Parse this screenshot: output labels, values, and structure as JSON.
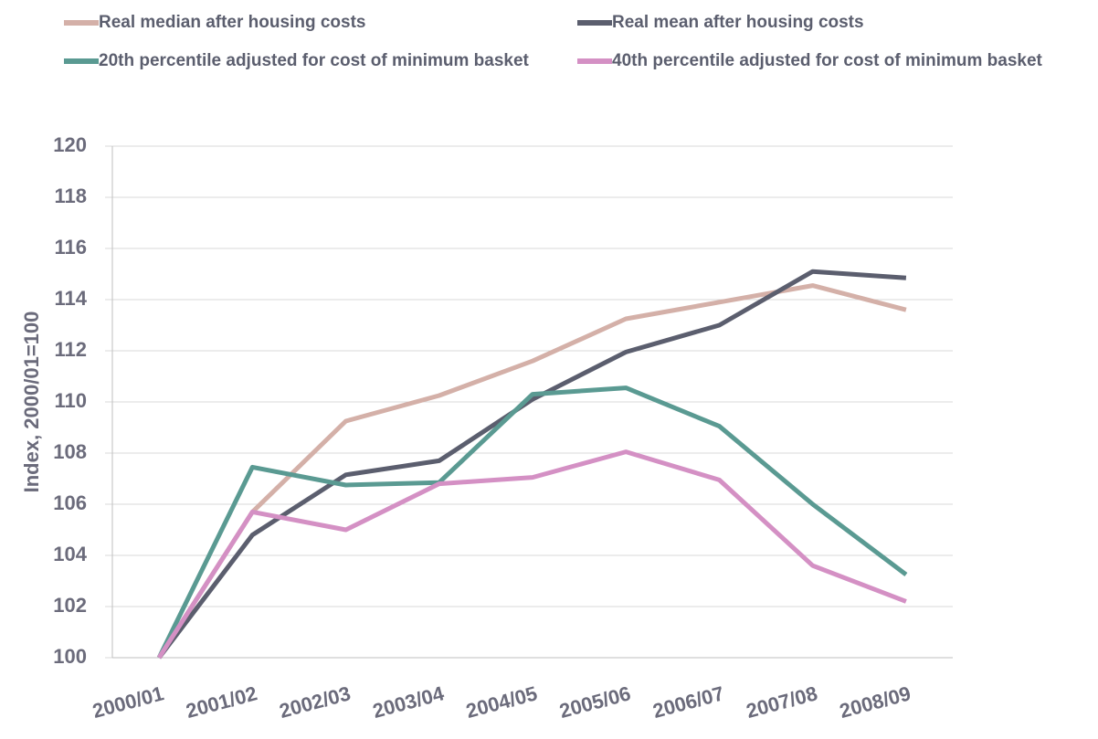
{
  "chart_data": {
    "type": "line",
    "y_label": "Index, 2000/01=100",
    "categories": [
      "2000/01",
      "2001/02",
      "2002/03",
      "2003/04",
      "2004/05",
      "2005/06",
      "2006/07",
      "2007/08",
      "2008/09"
    ],
    "series": [
      {
        "name": "Real median after housing costs",
        "color": "#d4b0a8",
        "values": [
          100,
          105.7,
          109.25,
          110.25,
          111.6,
          113.25,
          113.9,
          114.55,
          113.6
        ]
      },
      {
        "name": "Real mean after housing costs",
        "color": "#5b5e6e",
        "values": [
          100,
          104.8,
          107.15,
          107.7,
          110.1,
          111.95,
          113.0,
          115.1,
          114.85
        ]
      },
      {
        "name": "20th percentile adjusted for cost of minimum basket",
        "color": "#5a9a92",
        "values": [
          100,
          107.45,
          106.75,
          106.85,
          110.3,
          110.55,
          109.05,
          106.0,
          103.25
        ]
      },
      {
        "name": "40th percentile adjusted for cost of minimum basket",
        "color": "#d490c4",
        "values": [
          100,
          105.7,
          105.0,
          106.8,
          107.05,
          108.05,
          106.95,
          103.6,
          102.2
        ]
      }
    ],
    "ylim": [
      100,
      120
    ],
    "yticks": [
      100,
      102,
      104,
      106,
      108,
      110,
      112,
      114,
      116,
      118,
      120
    ],
    "grid": true
  }
}
